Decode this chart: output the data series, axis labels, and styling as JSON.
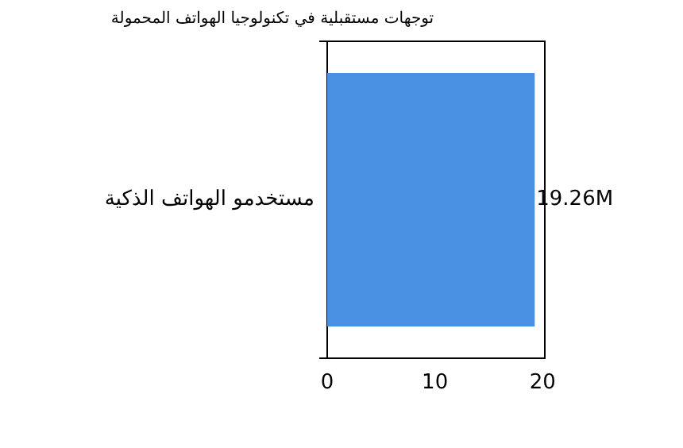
{
  "chart_data": {
    "type": "bar",
    "orientation": "horizontal",
    "title": "توجهات مستقبلية في تكنولوجيا الهواتف المحمولة",
    "categories": [
      "مستخدمو الهواتف الذكية"
    ],
    "values": [
      19.26
    ],
    "value_labels": [
      "19.26M"
    ],
    "color": "#4a90e2",
    "xlim": [
      0,
      20.2
    ],
    "xticks": [
      0,
      10,
      20
    ],
    "grid": false,
    "legend": false
  }
}
